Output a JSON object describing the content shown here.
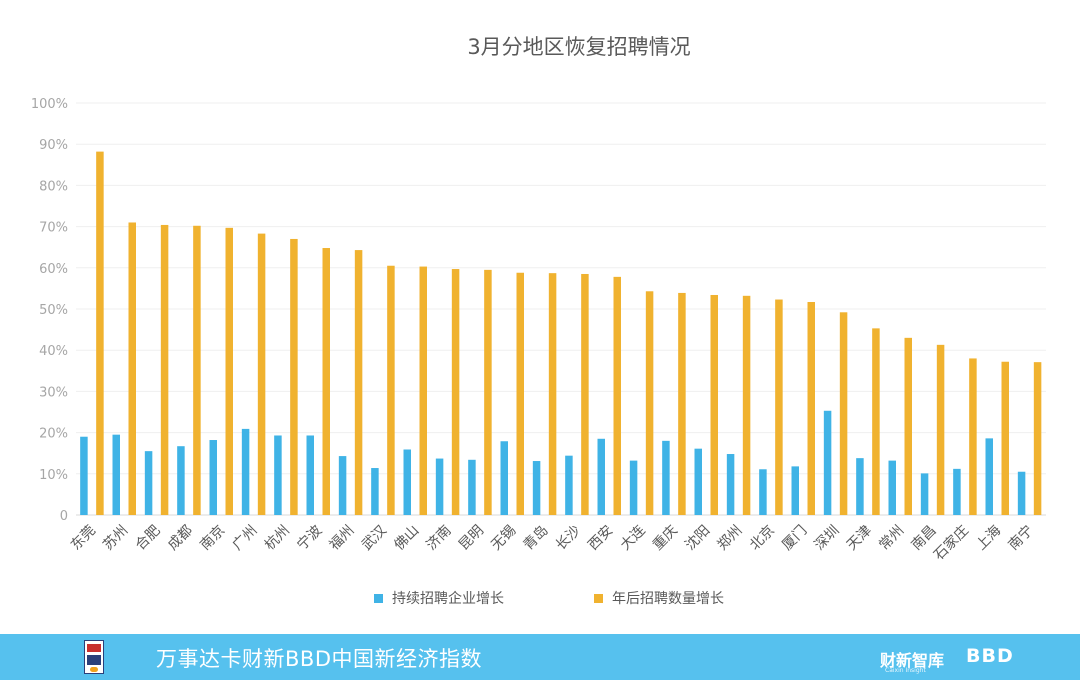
{
  "colors": {
    "series1": "#3fb3e6",
    "series2": "#f0b22f",
    "footer_bg": "#56c1ee",
    "text": "#595959",
    "axis_text": "#a6a6a6"
  },
  "chart_data": {
    "type": "bar",
    "title": "3月分地区恢复招聘情况",
    "xlabel": "",
    "ylabel": "",
    "ylim": [
      0,
      100
    ],
    "yticks": [
      "0",
      "10%",
      "20%",
      "30%",
      "40%",
      "50%",
      "60%",
      "70%",
      "80%",
      "90%",
      "100%"
    ],
    "ytick_values": [
      0,
      10,
      20,
      30,
      40,
      50,
      60,
      70,
      80,
      90,
      100
    ],
    "grid": true,
    "legend_position": "bottom",
    "categories": [
      "东莞",
      "苏州",
      "合肥",
      "成都",
      "南京",
      "广州",
      "杭州",
      "宁波",
      "福州",
      "武汉",
      "佛山",
      "济南",
      "昆明",
      "无锡",
      "青岛",
      "长沙",
      "西安",
      "大连",
      "重庆",
      "沈阳",
      "郑州",
      "北京",
      "厦门",
      "深圳",
      "天津",
      "常州",
      "南昌",
      "石家庄",
      "上海",
      "南宁"
    ],
    "series": [
      {
        "name": "持续招聘企业增长",
        "values": [
          19,
          19.5,
          15.5,
          16.7,
          18.2,
          20.9,
          19.3,
          19.3,
          14.3,
          11.4,
          15.9,
          13.7,
          13.4,
          17.9,
          13.1,
          14.4,
          18.5,
          13.2,
          18,
          16.1,
          14.8,
          11.1,
          11.8,
          25.3,
          13.8,
          13.2,
          10.1,
          11.2,
          18.6,
          10.5
        ]
      },
      {
        "name": "年后招聘数量增长",
        "values": [
          88.2,
          71,
          70.4,
          70.2,
          69.7,
          68.3,
          67,
          64.8,
          64.3,
          60.5,
          60.3,
          59.7,
          59.5,
          58.8,
          58.7,
          58.5,
          57.8,
          54.3,
          53.9,
          53.4,
          53.2,
          52.3,
          51.7,
          49.2,
          45.3,
          43,
          41.3,
          38,
          37.2,
          37.1
        ]
      }
    ]
  },
  "footer": {
    "title": "万事达卡财新BBD中国新经济指数",
    "brand": "财新智库",
    "brand_sub": "Caixin Insight",
    "bbd": "BBD"
  }
}
